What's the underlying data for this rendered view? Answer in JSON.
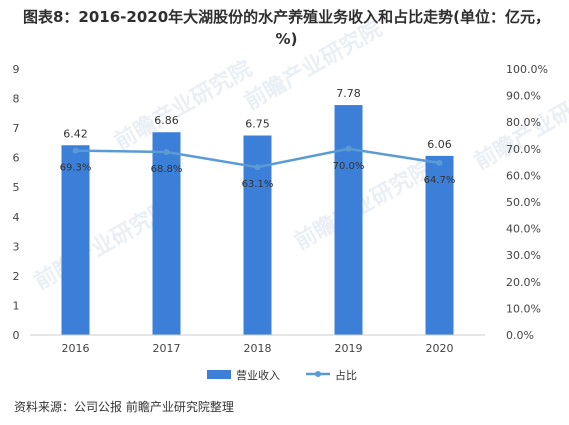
{
  "title": "图表8：2016-2020年大湖股份的水产养殖业务收入和占比走势(单位：亿元，%)",
  "source": "资料来源：公司公报 前瞻产业研究院整理",
  "watermark": "前瞻产业研究院",
  "chart_data": {
    "type": "bar",
    "categories": [
      "2016",
      "2017",
      "2018",
      "2019",
      "2020"
    ],
    "series": [
      {
        "name": "营业收入",
        "type": "bar",
        "axis": "left",
        "values": [
          6.42,
          6.86,
          6.75,
          7.78,
          6.06
        ],
        "labels": [
          "6.42",
          "6.86",
          "6.75",
          "7.78",
          "6.06"
        ]
      },
      {
        "name": "占比",
        "type": "line",
        "axis": "right",
        "values": [
          69.3,
          68.8,
          63.1,
          70.0,
          64.7
        ],
        "labels": [
          "69.3%",
          "68.8%",
          "63.1%",
          "70.0%",
          "64.7%"
        ]
      }
    ],
    "y_left": {
      "min": 0,
      "max": 9,
      "ticks": [
        "0",
        "1",
        "2",
        "3",
        "4",
        "5",
        "6",
        "7",
        "8",
        "9"
      ]
    },
    "y_right": {
      "min": 0,
      "max": 100,
      "ticks": [
        "0.0%",
        "10.0%",
        "20.0%",
        "30.0%",
        "40.0%",
        "50.0%",
        "60.0%",
        "70.0%",
        "80.0%",
        "90.0%",
        "100.0%"
      ]
    },
    "legend_position": "bottom",
    "colors": {
      "bar": "#3b7fd9",
      "line": "#5b9bd5"
    }
  }
}
